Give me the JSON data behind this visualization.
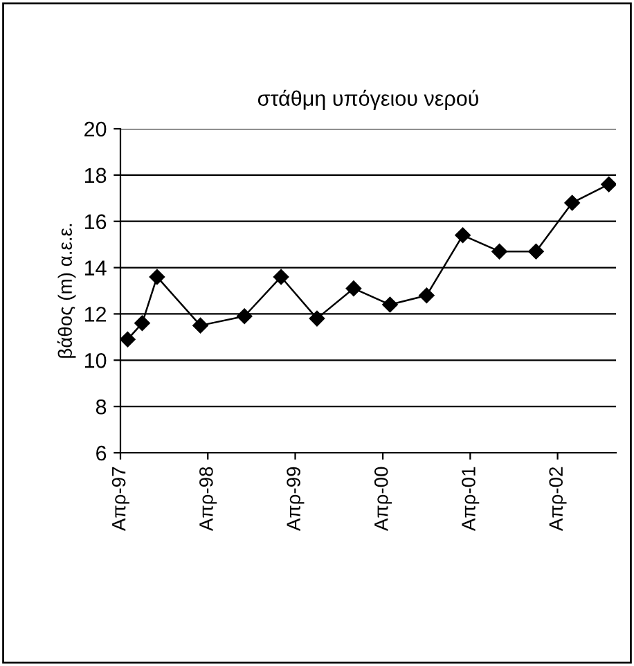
{
  "chart_data": {
    "type": "line",
    "title": "στάθμη υπόγειου νερού",
    "ylabel": "βάθος (m) α.ε.ε.",
    "x": [
      "1997-05",
      "1997-07",
      "1997-09",
      "1998-03",
      "1998-09",
      "1999-02",
      "1999-07",
      "1999-12",
      "2000-05",
      "2000-10",
      "2001-03",
      "2001-08",
      "2002-01",
      "2002-06",
      "2002-11"
    ],
    "series": [
      {
        "color": "#000000",
        "values": [
          10.9,
          11.6,
          13.6,
          11.5,
          11.9,
          13.6,
          11.8,
          13.1,
          12.4,
          12.8,
          15.4,
          14.7,
          14.7,
          16.8,
          17.6
        ]
      }
    ],
    "xlim": [
      "1997-04",
      "2002-12"
    ],
    "xticks": [
      {
        "value": "1997-04",
        "label": "Απρ-97"
      },
      {
        "value": "1998-04",
        "label": "Απρ-98"
      },
      {
        "value": "1999-04",
        "label": "Απρ-99"
      },
      {
        "value": "2000-04",
        "label": "Απρ-00"
      },
      {
        "value": "2001-04",
        "label": "Απρ-01"
      },
      {
        "value": "2002-04",
        "label": "Απρ-02"
      }
    ],
    "ylim": [
      6,
      20
    ],
    "yticks": [
      6,
      8,
      10,
      12,
      14,
      16,
      18,
      20
    ],
    "grid": "y",
    "marker": "diamond",
    "line_style": "solid",
    "legend": false
  }
}
